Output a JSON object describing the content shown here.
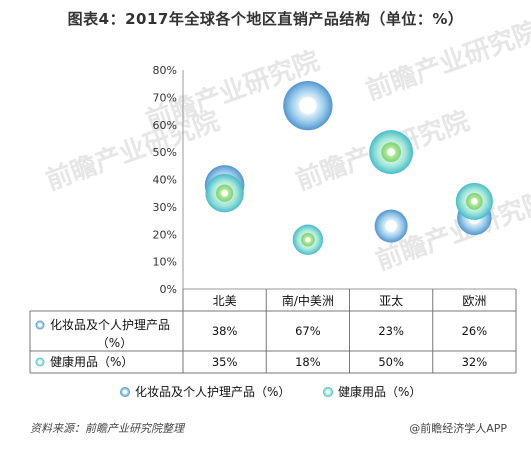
{
  "title": "图表4：2017年全球各个地区直销产品结构（单位：%）",
  "watermark": "前瞻产业研究院",
  "chart_data": {
    "type": "bubble",
    "categories": [
      "北美",
      "南/中美洲",
      "亚太",
      "欧洲"
    ],
    "yticks": [
      "0%",
      "10%",
      "20%",
      "30%",
      "40%",
      "50%",
      "60%",
      "70%",
      "80%"
    ],
    "ylim": [
      0,
      80
    ],
    "series": [
      {
        "name": "化妆品及个人护理产品（%）",
        "table_name_line1": "化妆品及个人护理产品",
        "table_name_line2": "（%）",
        "values": [
          38,
          67,
          23,
          26
        ],
        "labels": [
          "38%",
          "67%",
          "23%",
          "26%"
        ],
        "color": "#5a9fd4"
      },
      {
        "name": "健康用品（%）",
        "table_name_line1": "健康用品（%）",
        "values": [
          35,
          18,
          50,
          32
        ],
        "labels": [
          "35%",
          "18%",
          "50%",
          "32%"
        ],
        "color": "#4cc8c8"
      }
    ]
  },
  "footer": {
    "source": "资料来源：前瞻产业研究院整理",
    "brand": "@前瞻经济学人APP"
  }
}
